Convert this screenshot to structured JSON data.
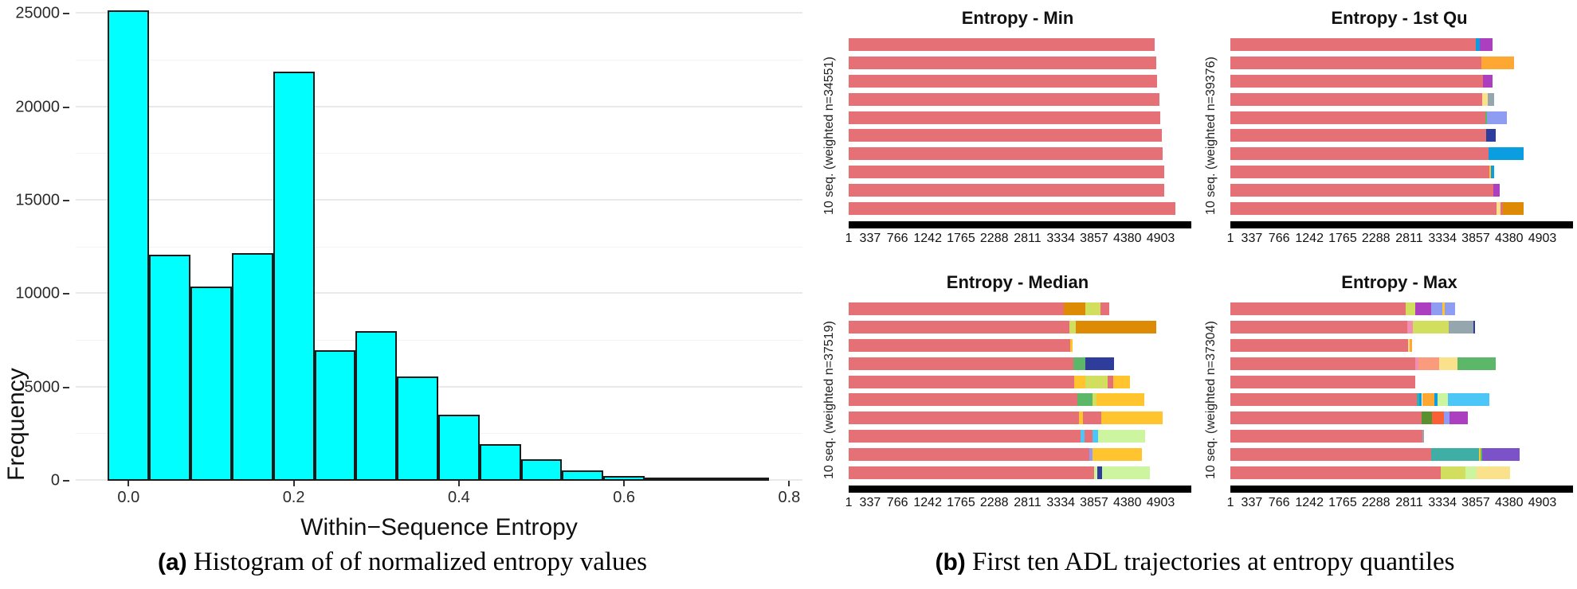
{
  "captions": {
    "a": {
      "prefix": "(a)",
      "text": " Histogram of of normalized entropy values"
    },
    "b": {
      "prefix": "(b)",
      "text": " First ten ADL trajectories at entropy quantiles"
    }
  },
  "palette": {
    "salmon": "#e57176",
    "yellowgreen": "#d2de5e",
    "purple": "#ab3fbf",
    "periwinkle": "#8e9df2",
    "navy": "#2e3d9b",
    "blue": "#0a9de0",
    "skyblue": "#4cc5f7",
    "orange": "#ffa733",
    "amber": "#ffc42e",
    "darkorange": "#dd8a05",
    "paleyellow": "#fae28c",
    "gray": "#95a6af",
    "green": "#5cb868",
    "darkgreen": "#5a9130",
    "palegreen": "#cdf5a0",
    "pink": "#f28fb0",
    "coral": "#fb9b7d",
    "orangered": "#fb5f35",
    "teal": "#3fafa5",
    "violet": "#7b52c8",
    "hist_fill": "#00ffff",
    "hist_stroke": "#1a1a1a"
  },
  "chart_data": [
    {
      "id": "entropy-histogram",
      "type": "bar",
      "title": "",
      "xlabel": "Within−Sequence Entropy",
      "ylabel": "Frequency",
      "bin_start": -0.025,
      "bin_width": 0.05,
      "values": [
        25200,
        12100,
        10400,
        12200,
        21900,
        7000,
        8000,
        5600,
        3550,
        1950,
        1150,
        550,
        250,
        110,
        55,
        30
      ],
      "x_tick_values": [
        0.0,
        0.2,
        0.4,
        0.6,
        0.8
      ],
      "x_tick_labels": [
        "0.0",
        "0.2",
        "0.4",
        "0.6",
        "0.8"
      ],
      "y_tick_values": [
        0,
        5000,
        10000,
        15000,
        20000,
        25000
      ],
      "y_minor_step": 2500,
      "xlim": [
        -0.064,
        0.816
      ],
      "ylim": [
        0,
        25400
      ],
      "grid": true,
      "legend": "none"
    },
    {
      "id": "seq-entropy-min",
      "type": "stacked-bar-h",
      "title": "Entropy - Min",
      "ylabel": "10 seq. (weighted n=34551)",
      "xmax": 5310,
      "x_tick_values": [
        1,
        337,
        766,
        1242,
        1765,
        2288,
        2811,
        3334,
        3857,
        4380,
        4903
      ],
      "x_tick_labels": [
        "1",
        "337",
        "766",
        "1242",
        "1765",
        "2288",
        "2811",
        "3334",
        "3857",
        "4380",
        "4903"
      ],
      "rows": [
        [
          [
            "salmon",
            4805
          ]
        ],
        [
          [
            "salmon",
            4835
          ]
        ],
        [
          [
            "salmon",
            4850
          ]
        ],
        [
          [
            "salmon",
            4890
          ]
        ],
        [
          [
            "salmon",
            4900
          ]
        ],
        [
          [
            "salmon",
            4925
          ]
        ],
        [
          [
            "salmon",
            4935
          ]
        ],
        [
          [
            "salmon",
            4955
          ]
        ],
        [
          [
            "salmon",
            4965
          ]
        ],
        [
          [
            "salmon",
            5140
          ]
        ]
      ]
    },
    {
      "id": "seq-entropy-1st-qu",
      "type": "stacked-bar-h",
      "title": "Entropy - 1st Qu",
      "ylabel": "10 seq. (weighted n=39376)",
      "xmax": 5310,
      "x_tick_values": [
        1,
        337,
        766,
        1242,
        1765,
        2288,
        2811,
        3334,
        3857,
        4380,
        4903
      ],
      "x_tick_labels": [
        "1",
        "337",
        "766",
        "1242",
        "1765",
        "2288",
        "2811",
        "3334",
        "3857",
        "4380",
        "4903"
      ],
      "rows": [
        [
          [
            "salmon",
            3860
          ],
          [
            "blue",
            3915
          ],
          [
            "purple",
            4120
          ]
        ],
        [
          [
            "salmon",
            3950
          ],
          [
            "orange",
            4455
          ]
        ],
        [
          [
            "salmon",
            3965
          ],
          [
            "purple",
            4120
          ]
        ],
        [
          [
            "salmon",
            3955
          ],
          [
            "paleyellow",
            4045
          ],
          [
            "gray",
            4150
          ]
        ],
        [
          [
            "salmon",
            4010
          ],
          [
            "green",
            4028
          ],
          [
            "periwinkle",
            4340
          ]
        ],
        [
          [
            "salmon",
            4020
          ],
          [
            "navy",
            4175
          ]
        ],
        [
          [
            "salmon",
            4055
          ],
          [
            "blue",
            4615
          ]
        ],
        [
          [
            "salmon",
            4065
          ],
          [
            "amber",
            4100
          ],
          [
            "blue",
            4145
          ]
        ],
        [
          [
            "salmon",
            4135
          ],
          [
            "purple",
            4235
          ]
        ],
        [
          [
            "salmon",
            4180
          ],
          [
            "paleyellow",
            4240
          ],
          [
            "salmon",
            4285
          ],
          [
            "darkorange",
            4605
          ]
        ]
      ]
    },
    {
      "id": "seq-entropy-median",
      "type": "stacked-bar-h",
      "title": "Entropy - Median",
      "ylabel": "10 seq. (weighted n=37519)",
      "xmax": 5310,
      "x_tick_values": [
        1,
        337,
        766,
        1242,
        1765,
        2288,
        2811,
        3334,
        3857,
        4380,
        4903
      ],
      "x_tick_labels": [
        "1",
        "337",
        "766",
        "1242",
        "1765",
        "2288",
        "2811",
        "3334",
        "3857",
        "4380",
        "4903"
      ],
      "rows": [
        [
          [
            "salmon",
            3385
          ],
          [
            "darkorange",
            3720
          ],
          [
            "yellowgreen",
            3955
          ],
          [
            "salmon",
            4095
          ]
        ],
        [
          [
            "salmon",
            3475
          ],
          [
            "yellowgreen",
            3570
          ],
          [
            "darkorange",
            4830
          ]
        ],
        [
          [
            "salmon",
            3485
          ],
          [
            "amber",
            3515
          ]
        ],
        [
          [
            "salmon",
            3530
          ],
          [
            "green",
            3725
          ],
          [
            "navy",
            4175
          ]
        ],
        [
          [
            "salmon",
            3550
          ],
          [
            "amber",
            3720
          ],
          [
            "yellowgreen",
            4075
          ],
          [
            "salmon",
            4160
          ],
          [
            "amber",
            4415
          ]
        ],
        [
          [
            "salmon",
            3600
          ],
          [
            "green",
            3835
          ],
          [
            "yellowgreen",
            3890
          ],
          [
            "amber",
            4645
          ]
        ],
        [
          [
            "salmon",
            3615
          ],
          [
            "amber",
            3685
          ],
          [
            "salmon",
            3965
          ],
          [
            "amber",
            4940
          ]
        ],
        [
          [
            "salmon",
            3640
          ],
          [
            "skyblue",
            3710
          ],
          [
            "salmon",
            3835
          ],
          [
            "skyblue",
            3920
          ],
          [
            "palegreen",
            4660
          ]
        ],
        [
          [
            "salmon",
            3780
          ],
          [
            "periwinkle",
            3835
          ],
          [
            "amber",
            4605
          ]
        ],
        [
          [
            "salmon",
            3860
          ],
          [
            "palegreen",
            3905
          ],
          [
            "navy",
            3985
          ],
          [
            "palegreen",
            4730
          ]
        ]
      ]
    },
    {
      "id": "seq-entropy-max",
      "type": "stacked-bar-h",
      "title": "Entropy - Max",
      "ylabel": "10 seq. (weighted n=37304)",
      "xmax": 5310,
      "x_tick_values": [
        1,
        337,
        766,
        1242,
        1765,
        2288,
        2811,
        3334,
        3857,
        4380,
        4903
      ],
      "x_tick_labels": [
        "1",
        "337",
        "766",
        "1242",
        "1765",
        "2288",
        "2811",
        "3334",
        "3857",
        "4380",
        "4903"
      ],
      "rows": [
        [
          [
            "salmon",
            2750
          ],
          [
            "yellowgreen",
            2905
          ],
          [
            "purple",
            3160
          ],
          [
            "periwinkle",
            3330
          ],
          [
            "amber",
            3372
          ],
          [
            "periwinkle",
            3530
          ]
        ],
        [
          [
            "salmon",
            2780
          ],
          [
            "pink",
            2865
          ],
          [
            "yellowgreen",
            3435
          ],
          [
            "gray",
            3820
          ],
          [
            "navy",
            3850
          ]
        ],
        [
          [
            "salmon",
            2790
          ],
          [
            "paleyellow",
            2822
          ],
          [
            "orange",
            2856
          ]
        ],
        [
          [
            "salmon",
            2900
          ],
          [
            "pink",
            2960
          ],
          [
            "coral",
            3285
          ],
          [
            "paleyellow",
            3575
          ],
          [
            "green",
            4170
          ]
        ],
        [
          [
            "salmon",
            2900
          ]
        ],
        [
          [
            "salmon",
            2930
          ],
          [
            "teal",
            2972
          ],
          [
            "blue",
            3012
          ],
          [
            "orange",
            3200
          ],
          [
            "blue",
            3255
          ],
          [
            "palegreen",
            3415
          ],
          [
            "skyblue",
            4075
          ]
        ],
        [
          [
            "salmon",
            3005
          ],
          [
            "darkgreen",
            3170
          ],
          [
            "orangered",
            3360
          ],
          [
            "periwinkle",
            3450
          ],
          [
            "purple",
            3730
          ]
        ],
        [
          [
            "salmon",
            3020
          ],
          [
            "gray",
            3048
          ]
        ],
        [
          [
            "salmon",
            3150
          ],
          [
            "teal",
            3910
          ],
          [
            "amber",
            3932
          ],
          [
            "green",
            3955
          ],
          [
            "violet",
            4540
          ]
        ],
        [
          [
            "salmon",
            3305
          ],
          [
            "yellowgreen",
            3695
          ],
          [
            "palegreen",
            3870
          ],
          [
            "paleyellow",
            4400
          ]
        ]
      ]
    }
  ]
}
